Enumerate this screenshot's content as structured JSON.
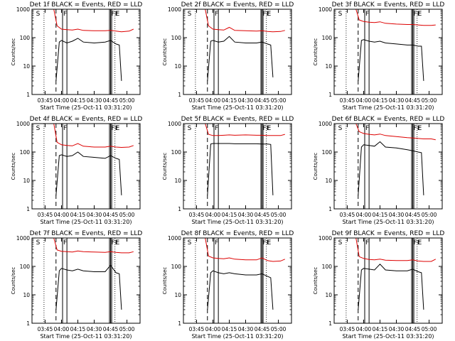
{
  "figure": {
    "background": "#ffffff",
    "colors": {
      "events": "#000000",
      "lld": "#dd0000",
      "axes": "#000000"
    }
  },
  "chart_data": [
    {
      "type": "line",
      "title": "Det 1f BLACK = Events, RED = LLD",
      "xlabel": "Start Time (25-Oct-11 03:31:20)",
      "ylabel": "Counts/sec",
      "yscale": "log",
      "ylim": [
        1,
        1000
      ],
      "xlim": [
        "03:33",
        "05:12"
      ],
      "xticks": [
        "03:45",
        "04:00",
        "04:15",
        "04:30",
        "04:45",
        "05:00"
      ],
      "yticks": [
        "1",
        "10",
        "100",
        "1000"
      ],
      "markers": [
        {
          "time": "03:36",
          "label": "S"
        },
        {
          "time": "04:01",
          "label": "F"
        },
        {
          "time": "04:45",
          "label": "FF"
        },
        {
          "time": "04:49",
          "label": "E"
        }
      ],
      "series": [
        {
          "name": "LLD",
          "color": "#dd0000",
          "x": [
            "03:53",
            "03:56",
            "04:00",
            "04:05",
            "04:10",
            "04:15",
            "04:20",
            "04:30",
            "04:40",
            "04:45",
            "04:50",
            "04:55",
            "05:02",
            "05:06"
          ],
          "y": [
            1000,
            260,
            200,
            190,
            185,
            200,
            180,
            175,
            175,
            180,
            170,
            160,
            170,
            200
          ]
        },
        {
          "name": "Events",
          "color": "#000000",
          "x": [
            "03:55",
            "03:58",
            "04:00",
            "04:05",
            "04:10",
            "04:15",
            "04:20",
            "04:30",
            "04:40",
            "04:45",
            "04:50",
            "04:53",
            "04:55"
          ],
          "y": [
            3,
            70,
            80,
            65,
            75,
            95,
            70,
            65,
            70,
            80,
            60,
            55,
            3
          ]
        }
      ]
    },
    {
      "type": "line",
      "title": "Det 2f BLACK = Events, RED = LLD",
      "xlabel": "Start Time (25-Oct-11 03:31:20)",
      "ylabel": "Counts/sec",
      "yscale": "log",
      "ylim": [
        1,
        1000
      ],
      "xlim": [
        "03:33",
        "05:12"
      ],
      "xticks": [
        "03:45",
        "04:00",
        "04:15",
        "04:30",
        "04:45",
        "05:00"
      ],
      "yticks": [
        "1",
        "10",
        "100",
        "1000"
      ],
      "markers": [
        {
          "time": "03:36",
          "label": "S"
        },
        {
          "time": "04:01",
          "label": "F"
        },
        {
          "time": "04:45",
          "label": "FF"
        },
        {
          "time": "04:49",
          "label": "E"
        }
      ],
      "series": [
        {
          "name": "LLD",
          "color": "#dd0000",
          "x": [
            "03:53",
            "03:56",
            "04:00",
            "04:05",
            "04:10",
            "04:15",
            "04:20",
            "04:30",
            "04:40",
            "04:45",
            "04:50",
            "04:55",
            "05:02",
            "05:06"
          ],
          "y": [
            1000,
            260,
            200,
            190,
            185,
            230,
            180,
            175,
            170,
            175,
            165,
            160,
            165,
            180
          ]
        },
        {
          "name": "Events",
          "color": "#000000",
          "x": [
            "03:55",
            "03:58",
            "04:00",
            "04:05",
            "04:10",
            "04:15",
            "04:20",
            "04:30",
            "04:40",
            "04:45",
            "04:50",
            "04:53",
            "04:55"
          ],
          "y": [
            3,
            75,
            80,
            70,
            75,
            110,
            70,
            65,
            65,
            70,
            60,
            55,
            4
          ]
        }
      ]
    },
    {
      "type": "line",
      "title": "Det 3f BLACK = Events, RED = LLD",
      "xlabel": "Start Time (25-Oct-11 03:31:20)",
      "ylabel": "Counts/sec",
      "yscale": "log",
      "ylim": [
        1,
        1000
      ],
      "xlim": [
        "03:33",
        "05:12"
      ],
      "xticks": [
        "03:45",
        "04:00",
        "04:15",
        "04:30",
        "04:45",
        "05:00"
      ],
      "yticks": [
        "1",
        "10",
        "100",
        "1000"
      ],
      "markers": [
        {
          "time": "03:36",
          "label": "S"
        },
        {
          "time": "04:01",
          "label": "F"
        },
        {
          "time": "04:45",
          "label": "FF"
        },
        {
          "time": "04:49",
          "label": "E"
        }
      ],
      "series": [
        {
          "name": "LLD",
          "color": "#dd0000",
          "x": [
            "03:53",
            "03:56",
            "04:00",
            "04:05",
            "04:10",
            "04:15",
            "04:20",
            "04:30",
            "04:40",
            "04:45",
            "04:50",
            "04:55",
            "05:02",
            "05:06"
          ],
          "y": [
            1000,
            420,
            370,
            350,
            340,
            360,
            320,
            300,
            290,
            290,
            280,
            270,
            270,
            280
          ]
        },
        {
          "name": "Events",
          "color": "#000000",
          "x": [
            "03:55",
            "03:58",
            "04:00",
            "04:05",
            "04:10",
            "04:15",
            "04:20",
            "04:30",
            "04:40",
            "04:45",
            "04:50",
            "04:53",
            "04:55"
          ],
          "y": [
            3,
            80,
            85,
            75,
            70,
            75,
            65,
            60,
            55,
            55,
            50,
            50,
            3
          ]
        }
      ]
    },
    {
      "type": "line",
      "title": "Det 4f BLACK = Events, RED = LLD",
      "xlabel": "Start Time (25-Oct-11 03:31:20)",
      "ylabel": "Counts/sec",
      "yscale": "log",
      "ylim": [
        1,
        1000
      ],
      "xlim": [
        "03:33",
        "05:12"
      ],
      "xticks": [
        "03:45",
        "04:00",
        "04:15",
        "04:30",
        "04:45",
        "05:00"
      ],
      "yticks": [
        "1",
        "10",
        "100",
        "1000"
      ],
      "markers": [
        {
          "time": "03:36",
          "label": "S"
        },
        {
          "time": "04:01",
          "label": "F"
        },
        {
          "time": "04:45",
          "label": "FF"
        },
        {
          "time": "04:49",
          "label": "E"
        }
      ],
      "series": [
        {
          "name": "LLD",
          "color": "#dd0000",
          "x": [
            "03:53",
            "03:56",
            "04:00",
            "04:05",
            "04:10",
            "04:15",
            "04:20",
            "04:30",
            "04:40",
            "04:45",
            "04:50",
            "04:55",
            "05:02",
            "05:06"
          ],
          "y": [
            1000,
            220,
            180,
            170,
            165,
            200,
            160,
            150,
            150,
            160,
            150,
            145,
            150,
            170
          ]
        },
        {
          "name": "Events",
          "color": "#000000",
          "x": [
            "03:55",
            "03:58",
            "04:00",
            "04:05",
            "04:10",
            "04:15",
            "04:20",
            "04:30",
            "04:40",
            "04:45",
            "04:50",
            "04:53",
            "04:55"
          ],
          "y": [
            3,
            75,
            80,
            70,
            75,
            100,
            70,
            65,
            60,
            75,
            60,
            55,
            3
          ]
        }
      ]
    },
    {
      "type": "line",
      "title": "Det 5f BLACK = Events, RED = LLD",
      "xlabel": "Start Time (25-Oct-11 03:31:20)",
      "ylabel": "Counts/sec",
      "yscale": "log",
      "ylim": [
        1,
        1000
      ],
      "xlim": [
        "03:33",
        "05:12"
      ],
      "xticks": [
        "03:45",
        "04:00",
        "04:15",
        "04:30",
        "04:45",
        "05:00"
      ],
      "yticks": [
        "1",
        "10",
        "100",
        "1000"
      ],
      "markers": [
        {
          "time": "03:36",
          "label": "S"
        },
        {
          "time": "04:01",
          "label": "F"
        },
        {
          "time": "04:45",
          "label": "FF"
        },
        {
          "time": "04:49",
          "label": "E"
        }
      ],
      "series": [
        {
          "name": "LLD",
          "color": "#dd0000",
          "x": [
            "03:53",
            "03:56",
            "04:00",
            "04:05",
            "04:10",
            "04:15",
            "04:20",
            "04:30",
            "04:40",
            "04:45",
            "04:50",
            "04:55",
            "05:02",
            "05:06"
          ],
          "y": [
            1000,
            420,
            380,
            380,
            390,
            400,
            390,
            400,
            390,
            390,
            380,
            380,
            380,
            420
          ]
        },
        {
          "name": "Events",
          "color": "#000000",
          "x": [
            "03:55",
            "03:58",
            "04:00",
            "04:05",
            "04:10",
            "04:15",
            "04:20",
            "04:30",
            "04:40",
            "04:45",
            "04:50",
            "04:53",
            "04:55"
          ],
          "y": [
            3,
            190,
            200,
            200,
            200,
            200,
            195,
            195,
            195,
            190,
            190,
            185,
            3
          ]
        }
      ]
    },
    {
      "type": "line",
      "title": "Det 6f BLACK = Events, RED = LLD",
      "xlabel": "Start Time (25-Oct-11 03:31:20)",
      "ylabel": "Counts/sec",
      "yscale": "log",
      "ylim": [
        1,
        1000
      ],
      "xlim": [
        "03:33",
        "05:12"
      ],
      "xticks": [
        "03:45",
        "04:00",
        "04:15",
        "04:30",
        "04:45",
        "05:00"
      ],
      "yticks": [
        "1",
        "10",
        "100",
        "1000"
      ],
      "markers": [
        {
          "time": "03:36",
          "label": "S"
        },
        {
          "time": "04:01",
          "label": "F"
        },
        {
          "time": "04:45",
          "label": "FF"
        },
        {
          "time": "04:49",
          "label": "E"
        }
      ],
      "series": [
        {
          "name": "LLD",
          "color": "#dd0000",
          "x": [
            "03:53",
            "03:56",
            "04:00",
            "04:05",
            "04:10",
            "04:15",
            "04:20",
            "04:30",
            "04:40",
            "04:45",
            "04:50",
            "04:55",
            "05:02",
            "05:06"
          ],
          "y": [
            1000,
            520,
            450,
            420,
            400,
            430,
            380,
            350,
            320,
            310,
            300,
            290,
            290,
            270
          ]
        },
        {
          "name": "Events",
          "color": "#000000",
          "x": [
            "03:55",
            "03:58",
            "04:00",
            "04:05",
            "04:10",
            "04:15",
            "04:20",
            "04:30",
            "04:40",
            "04:45",
            "04:50",
            "04:53",
            "04:55"
          ],
          "y": [
            3,
            150,
            180,
            170,
            160,
            230,
            150,
            140,
            120,
            110,
            100,
            95,
            3
          ]
        }
      ]
    },
    {
      "type": "line",
      "title": "Det 7f BLACK = Events, RED = LLD",
      "xlabel": "Start Time (25-Oct-11 03:31:20)",
      "ylabel": "Counts/sec",
      "yscale": "log",
      "ylim": [
        1,
        1000
      ],
      "xlim": [
        "03:33",
        "05:12"
      ],
      "xticks": [
        "03:45",
        "04:00",
        "04:15",
        "04:30",
        "04:45",
        "05:00"
      ],
      "yticks": [
        "1",
        "10",
        "100",
        "1000"
      ],
      "markers": [
        {
          "time": "03:36",
          "label": "S"
        },
        {
          "time": "04:01",
          "label": "F"
        },
        {
          "time": "04:45",
          "label": "FF"
        },
        {
          "time": "04:49",
          "label": "E"
        }
      ],
      "series": [
        {
          "name": "LLD",
          "color": "#dd0000",
          "x": [
            "03:53",
            "03:56",
            "04:00",
            "04:05",
            "04:10",
            "04:15",
            "04:20",
            "04:30",
            "04:40",
            "04:45",
            "04:50",
            "04:55",
            "05:02",
            "05:06"
          ],
          "y": [
            1000,
            380,
            340,
            330,
            320,
            350,
            330,
            320,
            310,
            330,
            310,
            300,
            300,
            330
          ]
        },
        {
          "name": "Events",
          "color": "#000000",
          "x": [
            "03:55",
            "03:58",
            "04:00",
            "04:05",
            "04:10",
            "04:15",
            "04:20",
            "04:30",
            "04:40",
            "04:45",
            "04:50",
            "04:53",
            "04:55"
          ],
          "y": [
            3,
            70,
            85,
            75,
            70,
            80,
            70,
            65,
            65,
            110,
            60,
            55,
            3
          ]
        }
      ]
    },
    {
      "type": "line",
      "title": "Det 8f BLACK = Events, RED = LLD",
      "xlabel": "Start Time (25-Oct-11 03:31:20)",
      "ylabel": "Counts/sec",
      "yscale": "log",
      "ylim": [
        1,
        1000
      ],
      "xlim": [
        "03:33",
        "05:12"
      ],
      "xticks": [
        "03:45",
        "04:00",
        "04:15",
        "04:30",
        "04:45",
        "05:00"
      ],
      "yticks": [
        "1",
        "10",
        "100",
        "1000"
      ],
      "markers": [
        {
          "time": "03:36",
          "label": "S"
        },
        {
          "time": "04:01",
          "label": "F"
        },
        {
          "time": "04:45",
          "label": "FF"
        },
        {
          "time": "04:49",
          "label": "E"
        }
      ],
      "series": [
        {
          "name": "LLD",
          "color": "#dd0000",
          "x": [
            "03:53",
            "03:56",
            "04:00",
            "04:05",
            "04:10",
            "04:15",
            "04:20",
            "04:30",
            "04:40",
            "04:45",
            "04:50",
            "04:55",
            "05:02",
            "05:06"
          ],
          "y": [
            1000,
            230,
            200,
            190,
            185,
            200,
            180,
            170,
            170,
            200,
            160,
            150,
            155,
            180
          ]
        },
        {
          "name": "Events",
          "color": "#000000",
          "x": [
            "03:55",
            "03:58",
            "04:00",
            "04:05",
            "04:10",
            "04:15",
            "04:20",
            "04:30",
            "04:40",
            "04:45",
            "04:50",
            "04:53",
            "04:55"
          ],
          "y": [
            3,
            60,
            70,
            60,
            55,
            60,
            55,
            50,
            50,
            55,
            45,
            40,
            3
          ]
        }
      ]
    },
    {
      "type": "line",
      "title": "Det 9f BLACK = Events, RED = LLD",
      "xlabel": "Start Time (25-Oct-11 03:31:20)",
      "ylabel": "Counts/sec",
      "yscale": "log",
      "ylim": [
        1,
        1000
      ],
      "xlim": [
        "03:33",
        "05:12"
      ],
      "xticks": [
        "03:45",
        "04:00",
        "04:15",
        "04:30",
        "04:45",
        "05:00"
      ],
      "yticks": [
        "1",
        "10",
        "100",
        "1000"
      ],
      "markers": [
        {
          "time": "03:36",
          "label": "S"
        },
        {
          "time": "04:01",
          "label": "F"
        },
        {
          "time": "04:45",
          "label": "FF"
        },
        {
          "time": "04:49",
          "label": "E"
        }
      ],
      "series": [
        {
          "name": "LLD",
          "color": "#dd0000",
          "x": [
            "03:53",
            "03:56",
            "04:00",
            "04:05",
            "04:10",
            "04:15",
            "04:20",
            "04:30",
            "04:40",
            "04:45",
            "04:50",
            "04:55",
            "05:02",
            "05:06"
          ],
          "y": [
            1000,
            220,
            190,
            175,
            170,
            180,
            165,
            160,
            160,
            170,
            155,
            150,
            150,
            180
          ]
        },
        {
          "name": "Events",
          "color": "#000000",
          "x": [
            "03:55",
            "03:58",
            "04:00",
            "04:05",
            "04:10",
            "04:15",
            "04:20",
            "04:30",
            "04:40",
            "04:45",
            "04:50",
            "04:53",
            "04:55"
          ],
          "y": [
            3,
            75,
            85,
            80,
            75,
            120,
            75,
            70,
            70,
            80,
            65,
            60,
            3
          ]
        }
      ]
    }
  ]
}
